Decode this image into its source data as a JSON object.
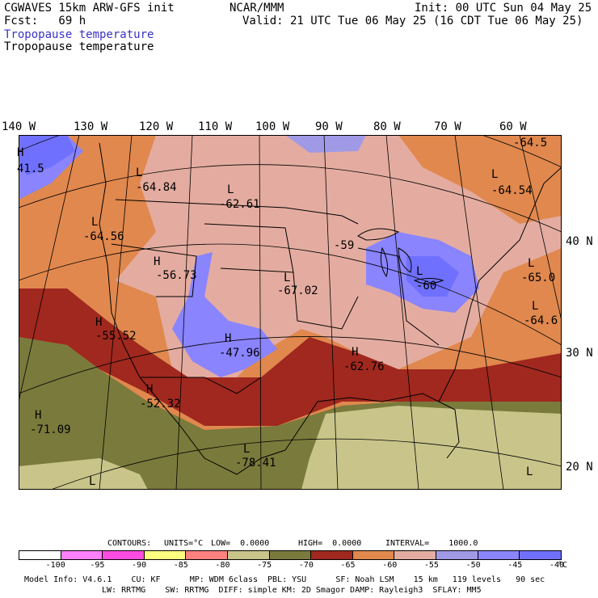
{
  "header": {
    "model_title": "CGWAVES 15km ARW-GFS init",
    "org": "NCAR/MMM",
    "init": "Init: 00 UTC Sun 04 May 25",
    "fcst": "Fcst:   69 h",
    "valid": "Valid: 21 UTC Tue 06 May 25 (16 CDT Tue 06 May 25)",
    "field_label_1": "Tropopause temperature",
    "field_label_2": "Tropopause temperature"
  },
  "longitude_labels": [
    "140 W",
    "130 W",
    "120 W",
    "110 W",
    "100 W",
    "90 W",
    "80 W",
    "70 W",
    "60 W"
  ],
  "latitude_labels": [
    "40 N",
    "30 N",
    "20 N"
  ],
  "extrema": [
    {
      "type": "H",
      "value": "41.5"
    },
    {
      "type": "L",
      "value": "-64.84"
    },
    {
      "type": "L",
      "value": "-62.61"
    },
    {
      "type": "L",
      "value": "-64.56"
    },
    {
      "type": "H",
      "value": "-56.73"
    },
    {
      "type": "L",
      "value": "-59"
    },
    {
      "type": "L",
      "value": "-67.02"
    },
    {
      "type": "L",
      "value": "-60"
    },
    {
      "type": "L",
      "value": "-64.54"
    },
    {
      "type": "L",
      "value": "-65.0"
    },
    {
      "type": "L",
      "value": "-64.6"
    },
    {
      "type": "L",
      "value": "-64.5"
    },
    {
      "type": "H",
      "value": "-55.52"
    },
    {
      "type": "H",
      "value": "-47.96"
    },
    {
      "type": "H",
      "value": "-62.76"
    },
    {
      "type": "H",
      "value": "-52.32"
    },
    {
      "type": "H",
      "value": "-71.09"
    },
    {
      "type": "L",
      "value": "-78.41"
    },
    {
      "type": "L",
      "value": ""
    },
    {
      "type": "L",
      "value": ""
    }
  ],
  "contour_info": {
    "contours": "CONTOURS:",
    "units": "UNITS=°C",
    "low": "LOW=  0.0000",
    "high": "HIGH=  0.0000",
    "interval": "INTERVAL=    1000.0"
  },
  "colorbar": {
    "unit": "°C",
    "ticks": [
      "-100",
      "-95",
      "-90",
      "-85",
      "-80",
      "-75",
      "-70",
      "-65",
      "-60",
      "-55",
      "-50",
      "-45",
      "-40"
    ],
    "colors": [
      "#ffffff",
      "#ff80ff",
      "#ff4ce0",
      "#ffff80",
      "#ff8080",
      "#c9c58a",
      "#7a7a3c",
      "#a0281e",
      "#e0884e",
      "#e4aca0",
      "#a09ae6",
      "#8a84ff",
      "#7070ff"
    ]
  },
  "model_info": {
    "line1": "Model Info: V4.6.1    CU: KF      MP: WDM 6class  PBL: YSU      SF: Noah LSM    15 km   119 levels   90 sec",
    "line2": "LW: RRTMG    SW: RRTMG  DIFF: simple KM: 2D Smagor DAMP: Rayleigh3  SFLAY: MM5"
  }
}
